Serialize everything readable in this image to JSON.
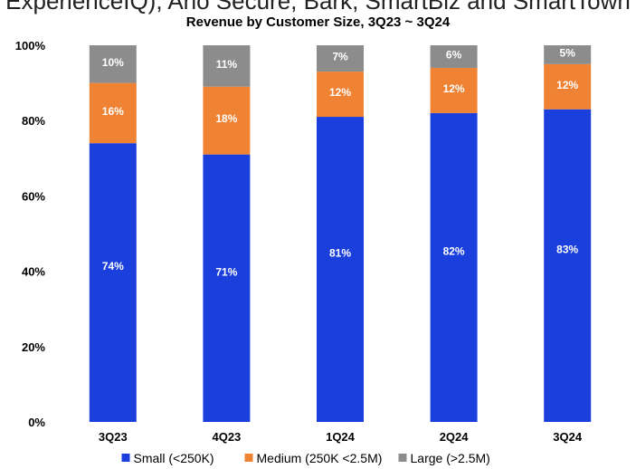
{
  "header": {
    "caption": "ExperienceIQ), Arlo Secure, Bark, SmartBiz and SmartTown"
  },
  "chart_data": {
    "type": "bar",
    "stacked": true,
    "title": "Revenue by Customer Size, 3Q23 ~ 3Q24",
    "categories": [
      "3Q23",
      "4Q23",
      "1Q24",
      "2Q24",
      "3Q24"
    ],
    "y_ticks": [
      "0%",
      "20%",
      "40%",
      "60%",
      "80%",
      "100%"
    ],
    "ylim": [
      0,
      100
    ],
    "series": [
      {
        "name": "Small (<250K)",
        "color": "#1a3fdc",
        "values": [
          74,
          71,
          81,
          82,
          83
        ],
        "labels": [
          "74%",
          "71%",
          "81%",
          "82%",
          "83%"
        ]
      },
      {
        "name": "Medium (250K <2.5M)",
        "color": "#f08234",
        "values": [
          16,
          18,
          12,
          12,
          12
        ],
        "labels": [
          "16%",
          "18%",
          "12%",
          "12%",
          "12%"
        ]
      },
      {
        "name": "Large (>2.5M)",
        "color": "#8c8c8c",
        "values": [
          10,
          11,
          7,
          6,
          5
        ],
        "labels": [
          "10%",
          "11%",
          "7%",
          "6%",
          "5%"
        ]
      }
    ],
    "legend_position": "bottom",
    "grid": false
  }
}
